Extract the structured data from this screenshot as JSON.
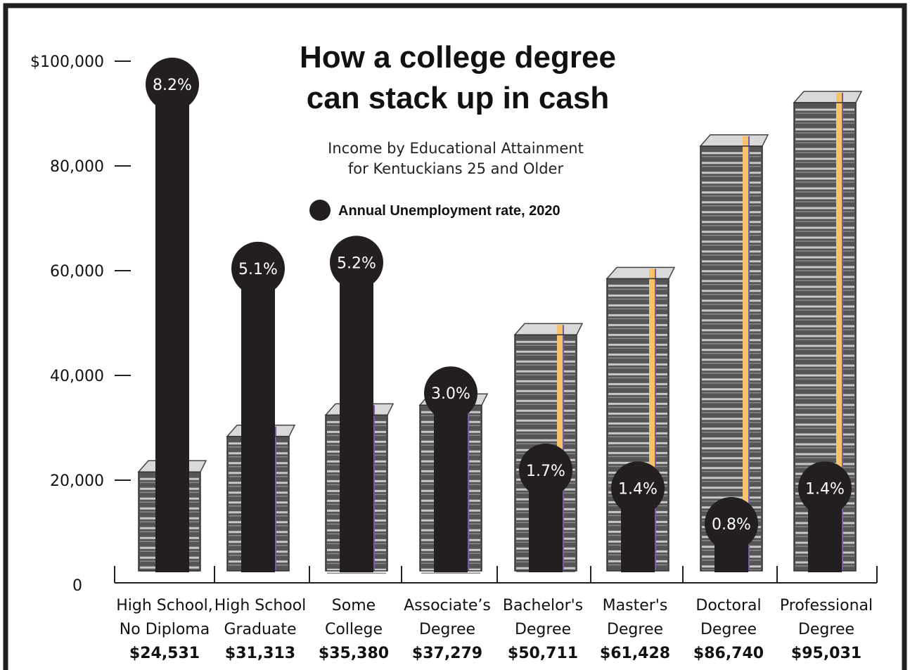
{
  "colors": {
    "ink": "#231f20",
    "cash_dark": "#555555",
    "cash_light": "#c8c8c8",
    "band": "#f6c36a",
    "band_edge": "#7a5aa0",
    "background": "#ffffff"
  },
  "chart_data": {
    "type": "bar",
    "title_lines": [
      "How a college degree",
      "can stack up in cash"
    ],
    "subtitle_lines": [
      "Income by Educational Attainment",
      "for Kentuckians 25 and Older"
    ],
    "legend": {
      "marker": "black circle",
      "label": "Annual Unemployment rate, 2020"
    },
    "xlabel": "",
    "ylabel": "",
    "ylim": [
      0,
      100000
    ],
    "yticks": [
      {
        "value": 0,
        "label": "0"
      },
      {
        "value": 20000,
        "label": "20,000"
      },
      {
        "value": 40000,
        "label": "40,000"
      },
      {
        "value": 60000,
        "label": "60,000"
      },
      {
        "value": 80000,
        "label": "80,000"
      },
      {
        "value": 100000,
        "label": "$100,000"
      }
    ],
    "grid": false,
    "categories": [
      [
        "High School,",
        "No Diploma"
      ],
      [
        "High School",
        "Graduate"
      ],
      [
        "Some",
        "College"
      ],
      [
        "Associate’s",
        "Degree"
      ],
      [
        "Bachelor's",
        "Degree"
      ],
      [
        "Master's",
        "Degree"
      ],
      [
        "Doctoral",
        "Degree"
      ],
      [
        "Professional",
        "Degree"
      ]
    ],
    "series": [
      {
        "name": "Income",
        "values": [
          24531,
          31313,
          35380,
          37279,
          50711,
          61428,
          86740,
          95031
        ],
        "labels": [
          "$24,531",
          "$31,313",
          "$35,380",
          "$37,279",
          "$50,711",
          "$61,428",
          "$86,740",
          "$95,031"
        ]
      },
      {
        "name": "Annual Unemployment rate, 2020",
        "values": [
          8.2,
          5.1,
          5.2,
          3.0,
          1.7,
          1.4,
          0.8,
          1.4
        ],
        "labels": [
          "8.2%",
          "5.1%",
          "5.2%",
          "3.0%",
          "1.7%",
          "1.4%",
          "0.8%",
          "1.4%"
        ]
      }
    ]
  }
}
